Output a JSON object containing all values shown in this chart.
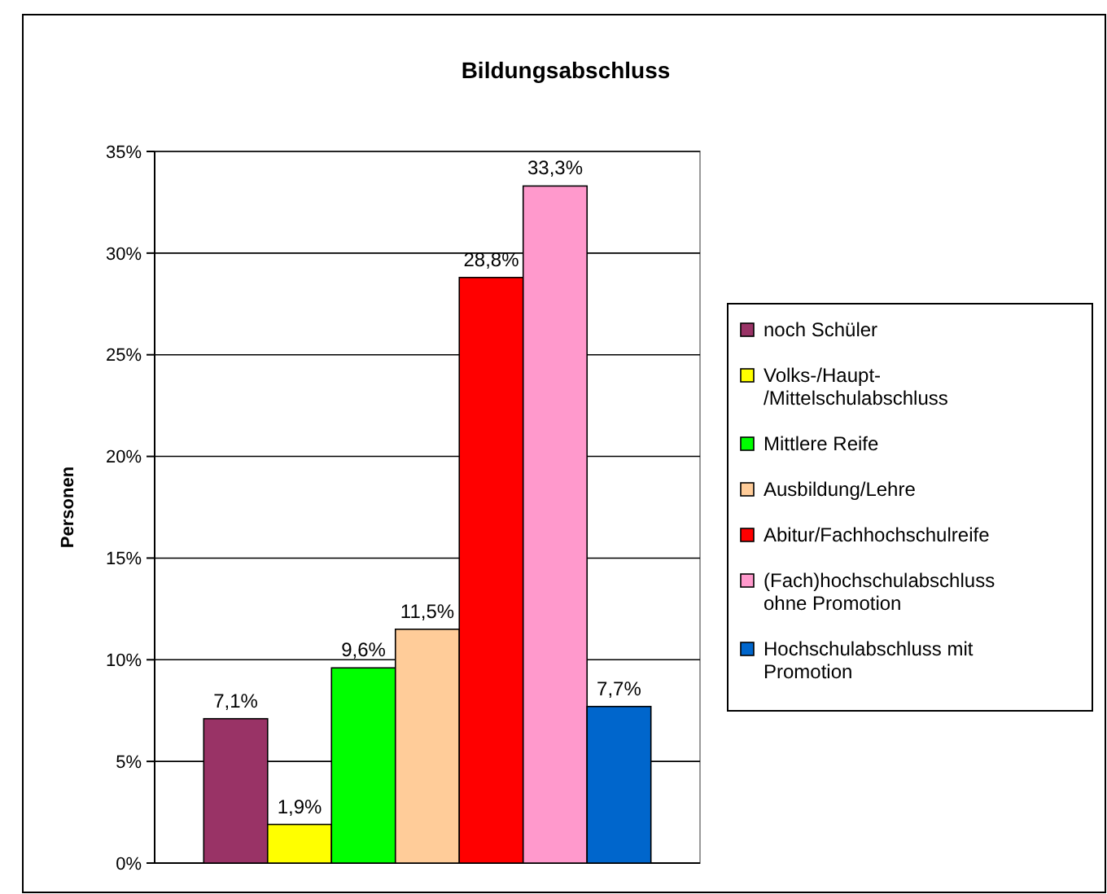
{
  "chart_data": {
    "type": "bar",
    "title": "Bildungsabschluss",
    "ylabel": "Personen",
    "categories": [
      null
    ],
    "ylim": [
      0,
      35
    ],
    "yticks": [
      {
        "value": 0,
        "label": "0%"
      },
      {
        "value": 5,
        "label": "5%"
      },
      {
        "value": 10,
        "label": "10%"
      },
      {
        "value": 15,
        "label": "15%"
      },
      {
        "value": 20,
        "label": "20%"
      },
      {
        "value": 25,
        "label": "25%"
      },
      {
        "value": 30,
        "label": "30%"
      },
      {
        "value": 35,
        "label": "35%"
      }
    ],
    "grid": "y",
    "legend": "right",
    "series": [
      {
        "name": "noch Schüler",
        "color": "#993366",
        "values": [
          7.1
        ],
        "value_labels": [
          "7,1%"
        ]
      },
      {
        "name": "Volks-/Haupt-/Mittelschulabschluss",
        "color": "#ffff00",
        "values": [
          1.9
        ],
        "value_labels": [
          "1,9%"
        ]
      },
      {
        "name": "Mittlere Reife",
        "color": "#00ff00",
        "values": [
          9.6
        ],
        "value_labels": [
          "9,6%"
        ]
      },
      {
        "name": "Ausbildung/Lehre",
        "color": "#ffcc99",
        "values": [
          11.5
        ],
        "value_labels": [
          "11,5%"
        ]
      },
      {
        "name": "Abitur/Fachhochschulreife",
        "color": "#ff0000",
        "values": [
          28.8
        ],
        "value_labels": [
          "28,8%"
        ]
      },
      {
        "name": "(Fach)hochschulabschluss ohne Promotion",
        "color": "#ff99cc",
        "values": [
          33.3
        ],
        "value_labels": [
          "33,3%"
        ]
      },
      {
        "name": "Hochschulabschluss mit Promotion",
        "color": "#0066cc",
        "values": [
          7.7
        ],
        "value_labels": [
          "7,7%"
        ]
      }
    ]
  }
}
